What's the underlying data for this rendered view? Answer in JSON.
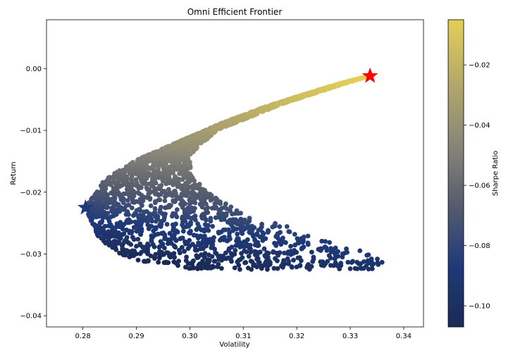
{
  "chart_data": {
    "type": "scatter",
    "title": "Omni Efficient Frontier",
    "xlabel": "Volatility",
    "ylabel": "Return",
    "xlim": [
      0.2732,
      0.3437
    ],
    "ylim": [
      -0.0418,
      0.0079
    ],
    "xticks": [
      {
        "value": 0.28,
        "label": "0.28"
      },
      {
        "value": 0.29,
        "label": "0.29"
      },
      {
        "value": 0.3,
        "label": "0.30"
      },
      {
        "value": 0.31,
        "label": "0.31"
      },
      {
        "value": 0.32,
        "label": "0.32"
      },
      {
        "value": 0.33,
        "label": "0.33"
      },
      {
        "value": 0.34,
        "label": "0.34"
      }
    ],
    "yticks": [
      {
        "value": 0.0,
        "label": "0.00"
      },
      {
        "value": -0.01,
        "label": "−0.01"
      },
      {
        "value": -0.02,
        "label": "−0.02"
      },
      {
        "value": -0.03,
        "label": "−0.03"
      },
      {
        "value": -0.04,
        "label": "−0.04"
      }
    ],
    "grid": false,
    "colorbar": {
      "label": "Sharpe Ratio",
      "range": [
        -0.107,
        -0.005
      ],
      "ticks": [
        {
          "value": -0.02,
          "label": "−0.02"
        },
        {
          "value": -0.04,
          "label": "−0.04"
        },
        {
          "value": -0.06,
          "label": "−0.06"
        },
        {
          "value": -0.08,
          "label": "−0.08"
        },
        {
          "value": -0.1,
          "label": "−0.10"
        }
      ],
      "colormap": [
        "#1a2a55",
        "#1f3a7a",
        "#575d6d",
        "#8a8779",
        "#b4a96a",
        "#e3cf57"
      ]
    },
    "frontier": {
      "min_volatility": 0.2805,
      "min_vol_return": -0.0225,
      "upper_branch": [
        [
          0.2805,
          -0.0225
        ],
        [
          0.284,
          -0.018
        ],
        [
          0.29,
          -0.0148
        ],
        [
          0.298,
          -0.0118
        ],
        [
          0.306,
          -0.0088
        ],
        [
          0.314,
          -0.0062
        ],
        [
          0.322,
          -0.004
        ],
        [
          0.328,
          -0.0024
        ],
        [
          0.3335,
          -0.0012
        ]
      ],
      "lower_branch": [
        [
          0.2805,
          -0.0225
        ],
        [
          0.283,
          -0.0275
        ],
        [
          0.287,
          -0.03
        ],
        [
          0.291,
          -0.0312
        ],
        [
          0.297,
          -0.0315
        ],
        [
          0.305,
          -0.0318
        ]
      ],
      "inner_boundary": [
        [
          0.3335,
          -0.0012
        ],
        [
          0.318,
          -0.0055
        ],
        [
          0.305,
          -0.01
        ],
        [
          0.3,
          -0.014
        ],
        [
          0.3005,
          -0.0175
        ],
        [
          0.305,
          -0.021
        ],
        [
          0.313,
          -0.025
        ],
        [
          0.322,
          -0.028
        ],
        [
          0.33,
          -0.03
        ],
        [
          0.336,
          -0.0325
        ]
      ]
    },
    "max_sharpe_point": {
      "volatility": 0.3337,
      "return": -0.0012,
      "color": "#ff0000"
    },
    "min_volatility_point": {
      "volatility": 0.2805,
      "return": -0.0225,
      "color": "#1f3a7a"
    }
  }
}
